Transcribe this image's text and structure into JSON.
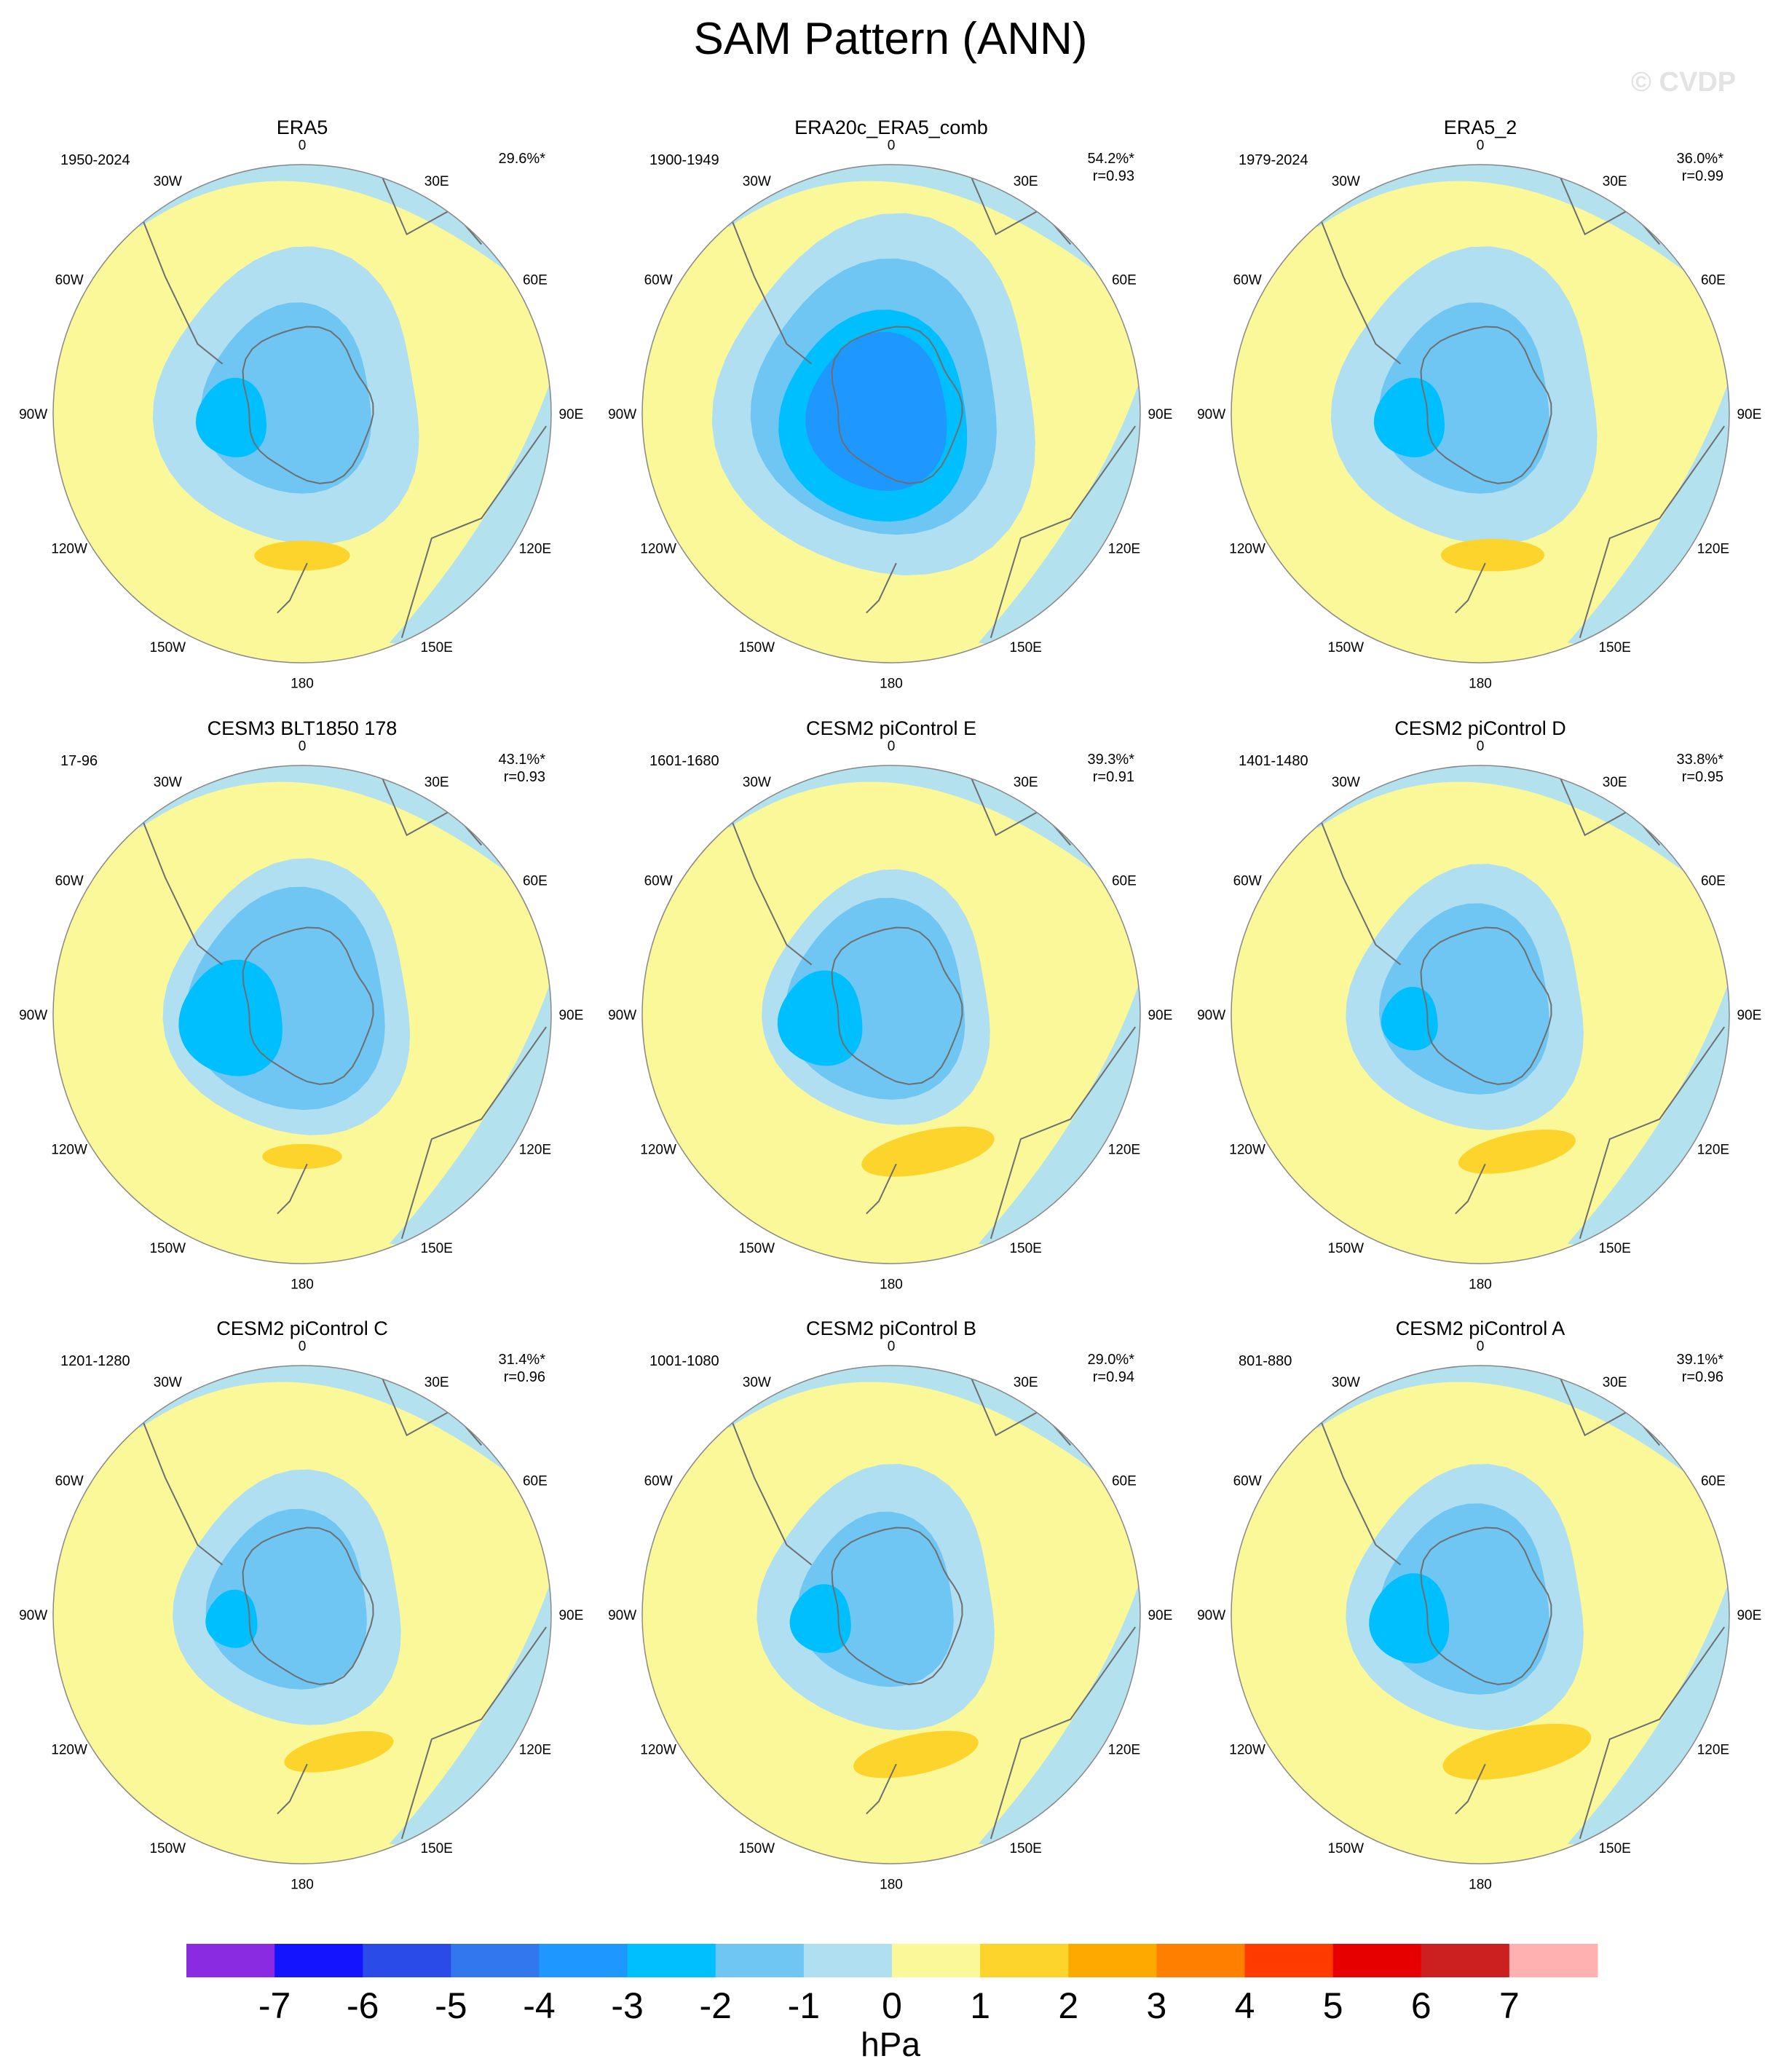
{
  "title": "SAM Pattern (ANN)",
  "watermark": "© CVDP",
  "units": "hPa",
  "colors": {
    "land_outline": "#6e6e6e",
    "panel_border": "#888888"
  },
  "chart_data": {
    "type": "heatmap",
    "projection": "south polar stereographic",
    "longitude_labels": [
      "0",
      "30E",
      "60E",
      "90E",
      "120E",
      "150E",
      "180",
      "150W",
      "120W",
      "90W",
      "60W",
      "30W"
    ],
    "colorbar": {
      "tick_labels": [
        "-7",
        "-6",
        "-5",
        "-4",
        "-3",
        "-2",
        "-1",
        "0",
        "1",
        "2",
        "3",
        "4",
        "5",
        "6",
        "7"
      ],
      "colors": [
        "#8a2be2",
        "#1414ff",
        "#2b4be8",
        "#3377ee",
        "#1e98ff",
        "#00bfff",
        "#70c6f2",
        "#b0dff2",
        "#fbf89a",
        "#fdd42c",
        "#fda900",
        "#ff7f00",
        "#ff3b00",
        "#e60000",
        "#cc2020",
        "#ffb0b0"
      ]
    },
    "panels": [
      {
        "title": "ERA5",
        "period": "1950-2024",
        "pct": "29.6%*",
        "r": "",
        "levels": {
          "n1": 0.56,
          "n2": 0.36,
          "n3": 0.15,
          "n4": 0.0,
          "p1": 0.12,
          "p1_lon": 180
        }
      },
      {
        "title": "ERA20c_ERA5_comb",
        "period": "1900-1949",
        "pct": "54.2%*",
        "r": "r=0.93",
        "levels": {
          "n1": 0.68,
          "n2": 0.52,
          "n3": 0.4,
          "n4": 0.3,
          "p1": 0.0,
          "p1_lon": 180
        }
      },
      {
        "title": "ERA5_2",
        "period": "1979-2024",
        "pct": "36.0%*",
        "r": "r=0.99",
        "levels": {
          "n1": 0.56,
          "n2": 0.36,
          "n3": 0.15,
          "n4": 0.0,
          "p1": 0.13,
          "p1_lon": 175
        }
      },
      {
        "title": "CESM3 BLT1850 178",
        "period": "17-96",
        "pct": "43.1%*",
        "r": "r=0.93",
        "levels": {
          "n1": 0.52,
          "n2": 0.42,
          "n3": 0.22,
          "n4": 0.0,
          "p1": 0.1,
          "p1_lon": 180
        }
      },
      {
        "title": "CESM2 piControl E",
        "period": "1601-1680",
        "pct": "39.3%*",
        "r": "r=0.91",
        "levels": {
          "n1": 0.48,
          "n2": 0.38,
          "n3": 0.18,
          "n4": 0.0,
          "p1": 0.17,
          "p1_lon": 165
        }
      },
      {
        "title": "CESM2 piControl D",
        "period": "1401-1480",
        "pct": "33.8%*",
        "r": "r=0.95",
        "levels": {
          "n1": 0.5,
          "n2": 0.36,
          "n3": 0.12,
          "n4": 0.0,
          "p1": 0.15,
          "p1_lon": 165
        }
      },
      {
        "title": "CESM2 piControl C",
        "period": "1201-1280",
        "pct": "31.4%*",
        "r": "r=0.96",
        "levels": {
          "n1": 0.48,
          "n2": 0.34,
          "n3": 0.11,
          "n4": 0.0,
          "p1": 0.14,
          "p1_lon": 165
        }
      },
      {
        "title": "CESM2 piControl B",
        "period": "1001-1080",
        "pct": "29.0%*",
        "r": "r=0.94",
        "levels": {
          "n1": 0.5,
          "n2": 0.33,
          "n3": 0.13,
          "n4": 0.0,
          "p1": 0.16,
          "p1_lon": 170
        }
      },
      {
        "title": "CESM2 piControl A",
        "period": "801-880",
        "pct": "39.1%*",
        "r": "r=0.96",
        "levels": {
          "n1": 0.5,
          "n2": 0.36,
          "n3": 0.17,
          "n4": 0.0,
          "p1": 0.19,
          "p1_lon": 165
        }
      }
    ]
  }
}
